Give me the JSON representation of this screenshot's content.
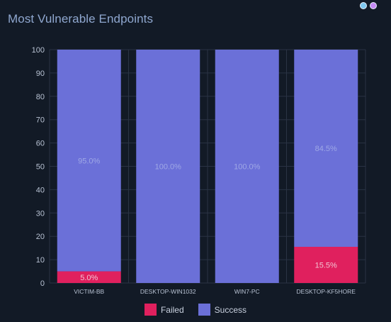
{
  "header": {
    "title": "Most Vulnerable Endpoints"
  },
  "colors": {
    "failed": "#e0205e",
    "success": "#6b70d8",
    "background": "#121a26",
    "grid": "#2a3344",
    "text": "#b8c2d3",
    "label": "#9fa8e6"
  },
  "chart_data": {
    "type": "bar",
    "stacked": true,
    "categories": [
      "VICTIM-BB",
      "DESKTOP-WIN1032",
      "WIN7-PC",
      "DESKTOP-KF5HORE"
    ],
    "series": [
      {
        "name": "Failed",
        "values": [
          5.0,
          0,
          0,
          15.5
        ],
        "labels": [
          "5.0%",
          "",
          "",
          "15.5%"
        ]
      },
      {
        "name": "Success",
        "values": [
          95.0,
          100.0,
          100.0,
          84.5
        ],
        "labels": [
          "95.0%",
          "100.0%",
          "100.0%",
          "84.5%"
        ]
      }
    ],
    "yticks": [
      "0",
      "10",
      "20",
      "30",
      "40",
      "50",
      "60",
      "70",
      "80",
      "90",
      "100"
    ],
    "ylim": [
      0,
      100
    ],
    "grid": true,
    "legend_position": "bottom"
  }
}
